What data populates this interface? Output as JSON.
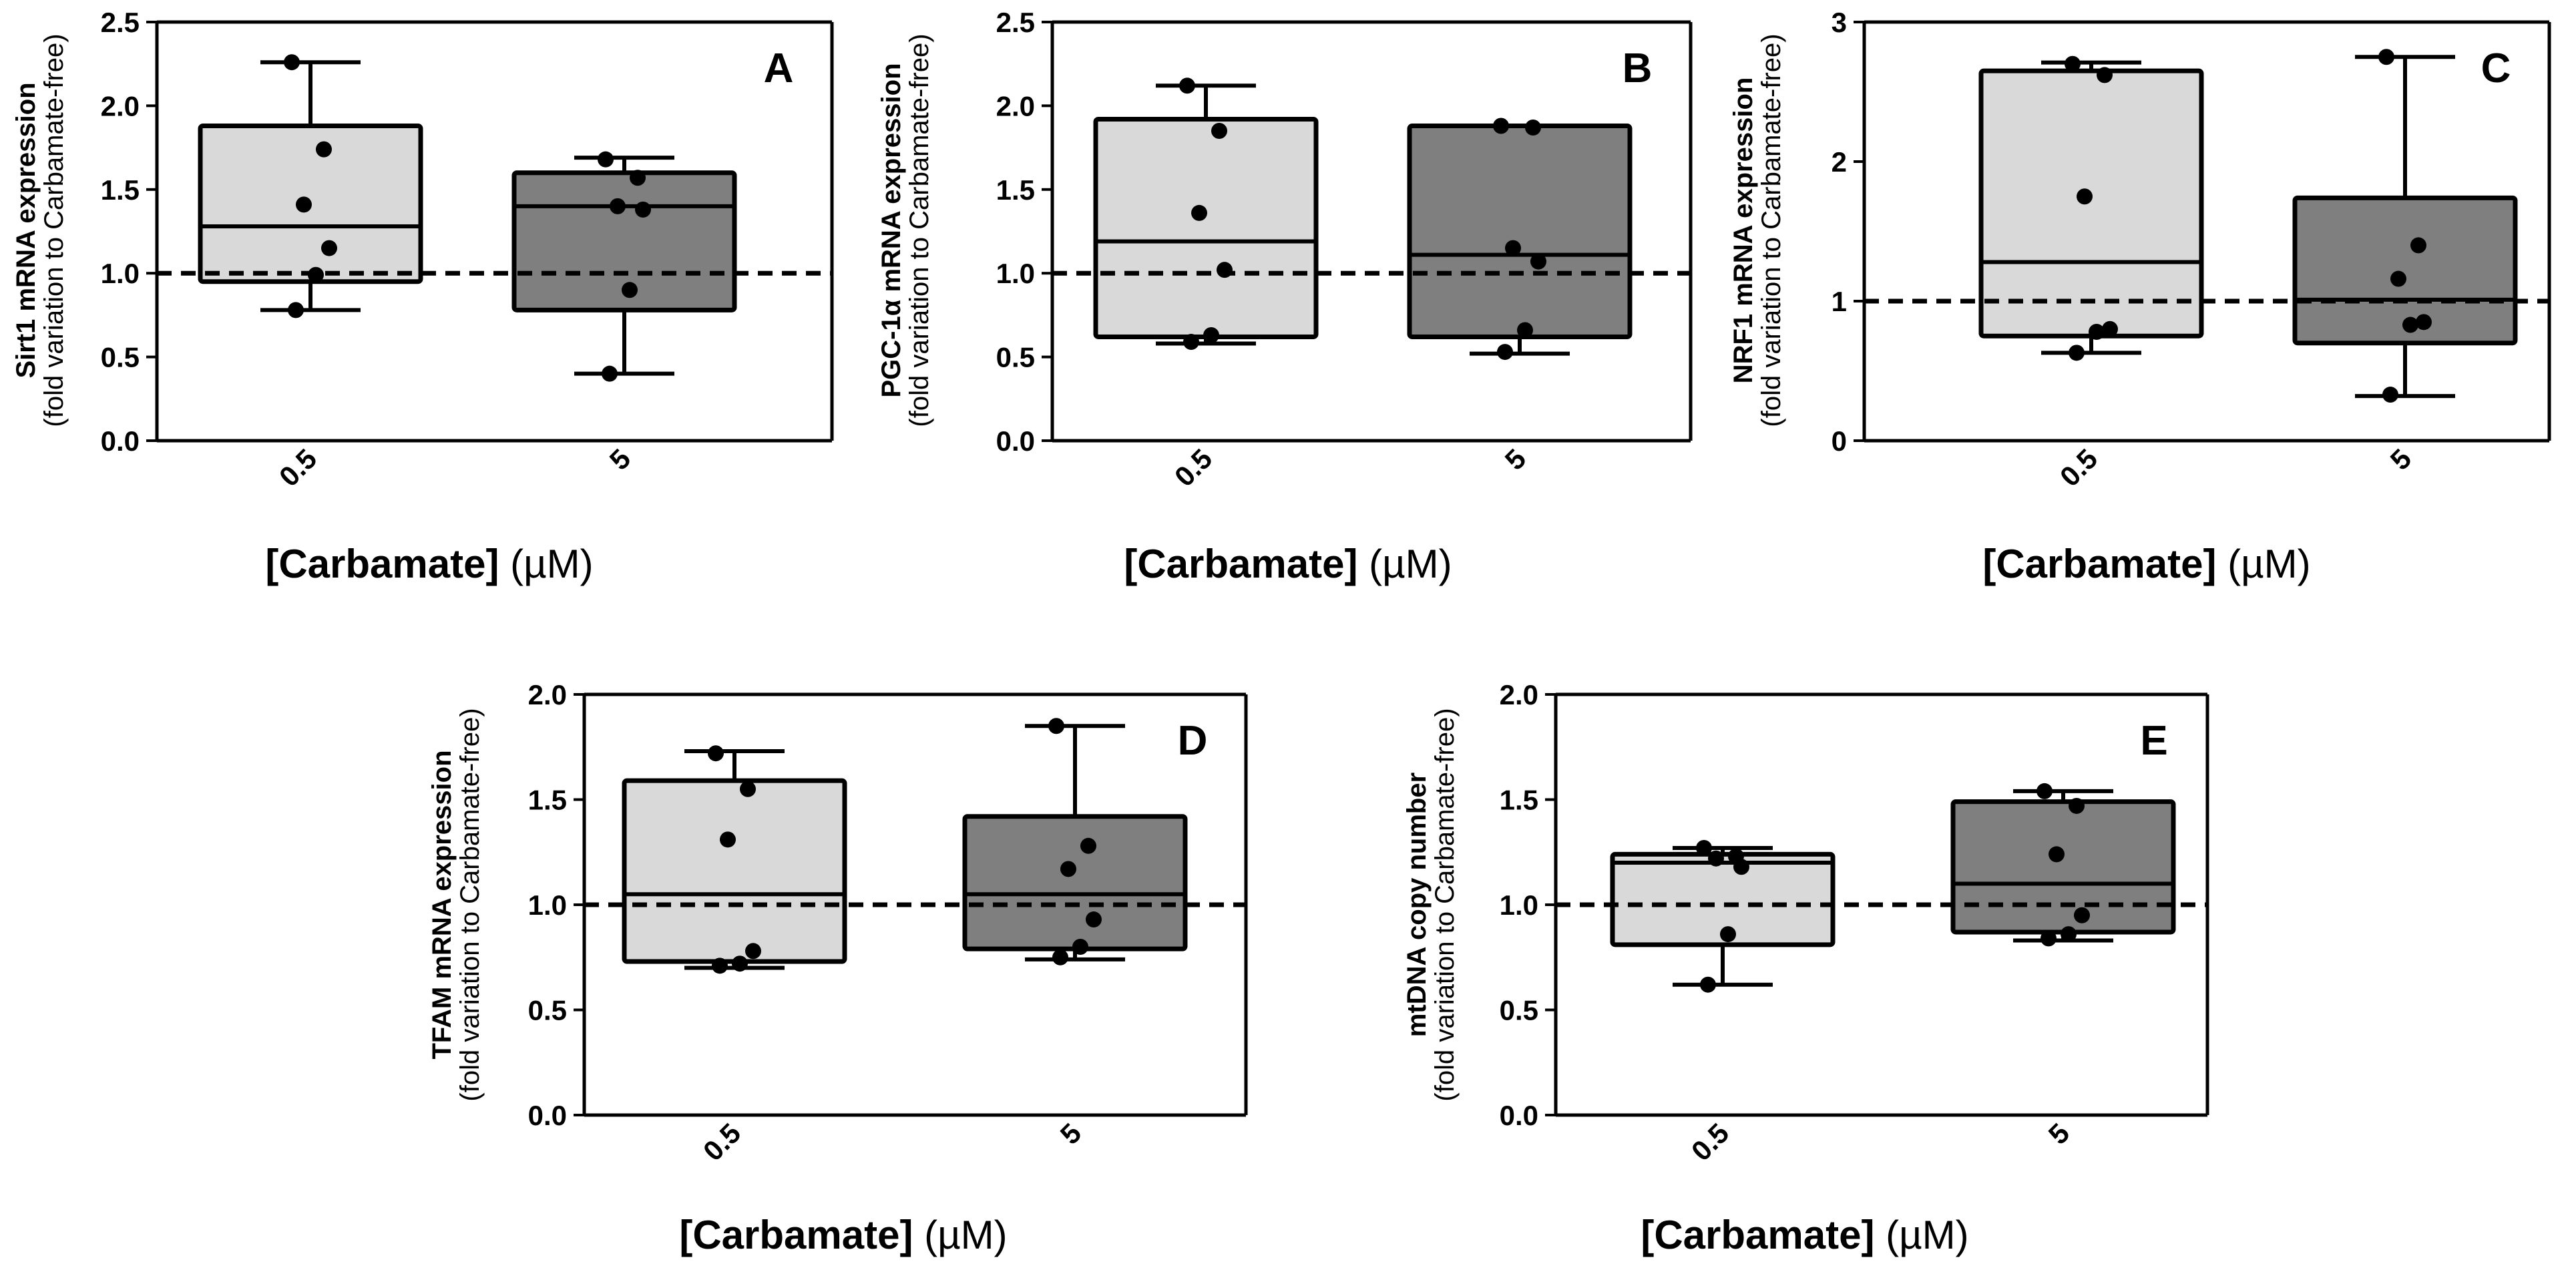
{
  "chart_data": [
    {
      "type": "box",
      "panel_label": "A",
      "ylabel": "Sirt1 mRNA expression",
      "ylabel_sub": "(fold variation to Carbamate-free)",
      "xlabel_bold": "[Carbamate]",
      "xlabel_unit": "(µM)",
      "categories": [
        "0.5",
        "5"
      ],
      "ylim": [
        0,
        2.5
      ],
      "yticks": [
        "0.0",
        "0.5",
        "1.0",
        "1.5",
        "2.0",
        "2.5"
      ],
      "reference_line": 1.0,
      "boxes": [
        {
          "category": "0.5",
          "min": 0.78,
          "q1": 0.95,
          "median": 1.28,
          "q3": 1.88,
          "max": 2.26,
          "fill": "#d9d9d9",
          "points": [
            0.78,
            0.99,
            1.15,
            1.41,
            1.74,
            2.26
          ]
        },
        {
          "category": "5",
          "min": 0.4,
          "q1": 0.78,
          "median": 1.4,
          "q3": 1.6,
          "max": 1.69,
          "fill": "#7f7f7f",
          "points": [
            0.4,
            0.9,
            1.38,
            1.4,
            1.57,
            1.68
          ]
        }
      ]
    },
    {
      "type": "box",
      "panel_label": "B",
      "ylabel": "PGC-1α mRNA expression",
      "ylabel_sub": "(fold variation to Carbamate-free)",
      "xlabel_bold": "[Carbamate]",
      "xlabel_unit": "(µM)",
      "categories": [
        "0.5",
        "5"
      ],
      "ylim": [
        0,
        2.5
      ],
      "yticks": [
        "0.0",
        "0.5",
        "1.0",
        "1.5",
        "2.0",
        "2.5"
      ],
      "reference_line": 1.0,
      "boxes": [
        {
          "category": "0.5",
          "min": 0.58,
          "q1": 0.62,
          "median": 1.19,
          "q3": 1.92,
          "max": 2.12,
          "fill": "#d9d9d9",
          "points": [
            0.59,
            0.63,
            1.02,
            1.36,
            1.85,
            2.12
          ]
        },
        {
          "category": "5",
          "min": 0.52,
          "q1": 0.62,
          "median": 1.11,
          "q3": 1.88,
          "max": 1.88,
          "fill": "#7f7f7f",
          "points": [
            0.53,
            0.66,
            1.07,
            1.15,
            1.87,
            1.88
          ]
        }
      ]
    },
    {
      "type": "box",
      "panel_label": "C",
      "ylabel": "NRF1 mRNA expression",
      "ylabel_sub": "(fold variation to Carbamate-free)",
      "xlabel_bold": "[Carbamate]",
      "xlabel_unit": "(µM)",
      "categories": [
        "0.5",
        "5"
      ],
      "ylim": [
        0,
        3
      ],
      "yticks": [
        "0",
        "1",
        "2",
        "3"
      ],
      "reference_line": 1.0,
      "boxes": [
        {
          "category": "0.5",
          "min": 0.63,
          "q1": 0.75,
          "median": 1.28,
          "q3": 2.65,
          "max": 2.71,
          "fill": "#d9d9d9",
          "points": [
            0.63,
            0.78,
            0.8,
            1.75,
            2.62,
            2.7
          ]
        },
        {
          "category": "5",
          "min": 0.32,
          "q1": 0.7,
          "median": 1.01,
          "q3": 1.74,
          "max": 2.75,
          "fill": "#7f7f7f",
          "points": [
            0.33,
            0.83,
            0.85,
            1.16,
            1.4,
            2.75
          ]
        }
      ]
    },
    {
      "type": "box",
      "panel_label": "D",
      "ylabel": "TFAM mRNA expression",
      "ylabel_sub": "(fold variation to Carbamate-free)",
      "xlabel_bold": "[Carbamate]",
      "xlabel_unit": "(µM)",
      "categories": [
        "0.5",
        "5"
      ],
      "ylim": [
        0,
        2.0
      ],
      "yticks": [
        "0.0",
        "0.5",
        "1.0",
        "1.5",
        "2.0"
      ],
      "reference_line": 1.0,
      "boxes": [
        {
          "category": "0.5",
          "min": 0.7,
          "q1": 0.73,
          "median": 1.05,
          "q3": 1.59,
          "max": 1.73,
          "fill": "#d9d9d9",
          "points": [
            0.71,
            0.72,
            0.78,
            1.31,
            1.55,
            1.72
          ]
        },
        {
          "category": "5",
          "min": 0.74,
          "q1": 0.79,
          "median": 1.05,
          "q3": 1.42,
          "max": 1.85,
          "fill": "#7f7f7f",
          "points": [
            0.75,
            0.8,
            0.93,
            1.17,
            1.28,
            1.85
          ]
        }
      ]
    },
    {
      "type": "box",
      "panel_label": "E",
      "ylabel": "mtDNA copy number",
      "ylabel_sub": "(fold variation to Carbamate-free)",
      "xlabel_bold": "[Carbamate]",
      "xlabel_unit": "(µM)",
      "categories": [
        "0.5",
        "5"
      ],
      "ylim": [
        0,
        2.0
      ],
      "yticks": [
        "0.0",
        "0.5",
        "1.0",
        "1.5",
        "2.0"
      ],
      "reference_line": 1.0,
      "boxes": [
        {
          "category": "0.5",
          "min": 0.62,
          "q1": 0.81,
          "median": 1.2,
          "q3": 1.24,
          "max": 1.27,
          "fill": "#d9d9d9",
          "points": [
            0.62,
            0.86,
            1.18,
            1.22,
            1.23,
            1.27
          ]
        },
        {
          "category": "5",
          "min": 0.83,
          "q1": 0.87,
          "median": 1.1,
          "q3": 1.49,
          "max": 1.54,
          "fill": "#7f7f7f",
          "points": [
            0.84,
            0.86,
            0.95,
            1.24,
            1.47,
            1.54
          ]
        }
      ]
    }
  ]
}
